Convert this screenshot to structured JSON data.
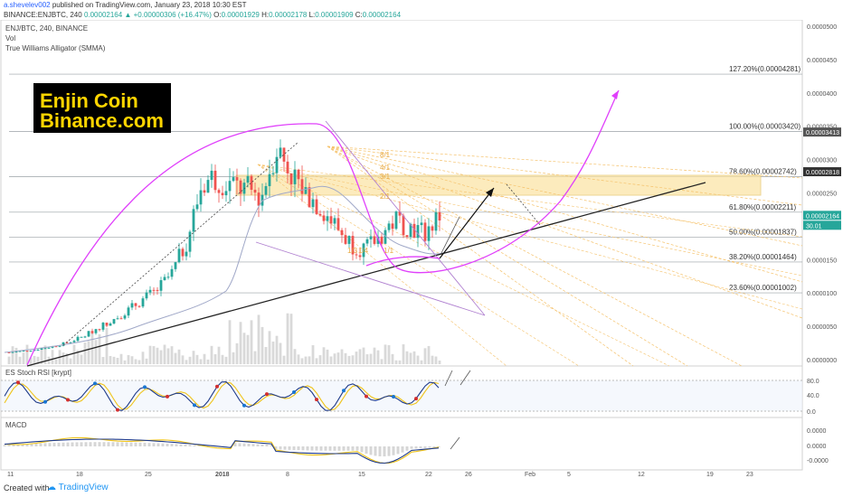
{
  "header": {
    "author": "a.shevelev002",
    "published": "published on TradingView.com, January 23, 2018 10:30 EST",
    "symbol": "BINANCE:ENJBTC, 240",
    "last": "0.00002164",
    "change": "+0.00000306 (+16.47%)",
    "o_label": "O:",
    "o": "0.00001929",
    "h_label": "H:",
    "h": "0.00002178",
    "l_label": "L:",
    "l": "0.00001909",
    "c_label": "C:",
    "c": "0.00002164"
  },
  "legend": {
    "pair": "ENJ/BTC, 240, BINANCE",
    "vol": "Vol",
    "indicator": "True Williams Alligator (SMMA)"
  },
  "banner": {
    "line1": "Enjin Coin",
    "line2": "Binance.com"
  },
  "fib_labels": [
    {
      "label": "127.20%(0.00004281)",
      "value": 4.281e-05
    },
    {
      "label": "100.00%(0.00003420)",
      "value": 3.42e-05
    },
    {
      "label": "78.60%(0.00002742)",
      "value": 2.742e-05
    },
    {
      "label": "61.80%(0.00002211)",
      "value": 2.211e-05
    },
    {
      "label": "50.00%(0.00001837)",
      "value": 1.837e-05
    },
    {
      "label": "38.20%(0.00001464)",
      "value": 1.464e-05
    },
    {
      "label": "23.60%(0.00001002)",
      "value": 1.002e-05
    }
  ],
  "fan_labels": [
    "8/1",
    "4/1",
    "3/1",
    "2/1",
    "1/3",
    "1/4",
    "1/1"
  ],
  "price_axis": {
    "ticks": [
      "0.0000500",
      "0.0000450",
      "0.0000400",
      "0.0000350",
      "0.0000300",
      "0.0000250",
      "0.0000200",
      "0.0000150",
      "0.0000100",
      "0.0000050",
      "0.0000000"
    ],
    "badges": [
      {
        "label": "0.00003413",
        "color": "#555555"
      },
      {
        "label": "0.00002818",
        "color": "#333333"
      },
      {
        "label": "0.00002164",
        "color": "#26a69a"
      },
      {
        "label": "30.01",
        "color": "#26a69a"
      }
    ]
  },
  "rsi": {
    "title": "ES Stoch RSI [krypt]",
    "ticks": [
      "80.0",
      "40.0",
      "0.0"
    ]
  },
  "macd": {
    "title": "MACD",
    "ticks": [
      "0.0000",
      "0.0000",
      "-0.0000"
    ]
  },
  "time_axis": [
    "11",
    "18",
    "25",
    "2018",
    "8",
    "15",
    "22",
    "26",
    "Feb",
    "5",
    "12",
    "19",
    "23"
  ],
  "footer": {
    "created": "Created with",
    "brand": "TradingView"
  },
  "colors": {
    "up": "#26a69a",
    "down": "#ef5350",
    "arc": "#e040fb",
    "fan": "#f5c26b",
    "zone": "#fbe5a8",
    "trend": "#222222",
    "stoch_k": "#1e3a8a",
    "stoch_d": "#f0c419"
  },
  "chart_data": {
    "type": "candlestick",
    "symbol": "ENJ/BTC",
    "interval": "240",
    "ylim": [
      0,
      5e-05
    ],
    "last_ohlc": {
      "open": 1.929e-05,
      "high": 2.178e-05,
      "low": 1.909e-05,
      "close": 2.164e-05
    },
    "series_approx_close": [
      1.1e-06,
      1.3e-06,
      1.6e-06,
      2e-06,
      2.6e-06,
      3.5e-06,
      4.8e-06,
      6e-06,
      7.4e-06,
      9e-06,
      1.05e-05,
      1.3e-05,
      1.8e-05,
      2.65e-05,
      2.75e-05,
      2.6e-05,
      2.55e-05,
      2.45e-05,
      3.2e-05,
      2.8e-05,
      2.5e-05,
      2.3e-05,
      2e-05,
      1.75e-05,
      1.65e-05,
      1.85e-05,
      2.1e-05,
      2e-05,
      1.9e-05,
      2.16e-05
    ],
    "fibonacci_levels": [
      {
        "ratio": 1.272,
        "value": 4.281e-05
      },
      {
        "ratio": 1.0,
        "value": 3.42e-05
      },
      {
        "ratio": 0.786,
        "value": 2.742e-05
      },
      {
        "ratio": 0.618,
        "value": 2.211e-05
      },
      {
        "ratio": 0.5,
        "value": 1.837e-05
      },
      {
        "ratio": 0.382,
        "value": 1.464e-05
      },
      {
        "ratio": 0.236,
        "value": 1.002e-05
      }
    ]
  }
}
